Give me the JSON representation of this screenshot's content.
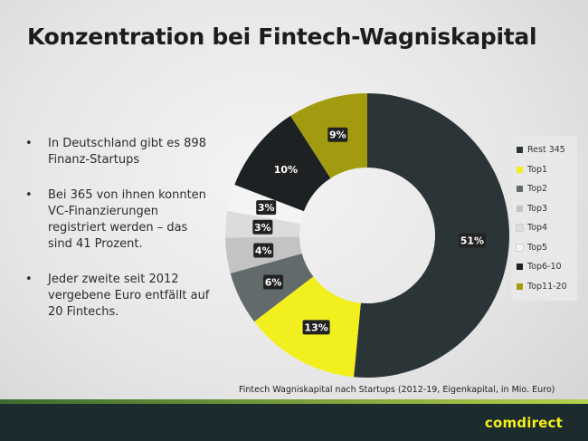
{
  "title": "Konzentration bei Fintech-Wagniskapital",
  "bullets": [
    "In Deutschland gibt es 898 Finanz-Startups",
    "Bei 365 von ihnen konnten VC-Finanzierungen registriert werden – das sind 41 Prozent.",
    "Jeder zweite seit 2012 vergebene Euro entfällt auf 20 Fintechs."
  ],
  "caption": "Fintech Wagniskapital nach Startups (2012-19, Eigenkapital, in Mio. Euro)",
  "brand": "comdirect",
  "chart_data": {
    "type": "pie",
    "subtype": "donut",
    "unit": "%",
    "legend_position": "right",
    "segments": [
      {
        "name": "Rest 345",
        "value": 51,
        "label": "51%",
        "color": "#2b3537"
      },
      {
        "name": "Top1",
        "value": 13,
        "label": "13%",
        "color": "#f2ef1f"
      },
      {
        "name": "Top2",
        "value": 6,
        "label": "6%",
        "color": "#626a6b"
      },
      {
        "name": "Top3",
        "value": 4,
        "label": "4%",
        "color": "#c3c3c3"
      },
      {
        "name": "Top4",
        "value": 3,
        "label": "3%",
        "color": "#dcdcdc"
      },
      {
        "name": "Top5",
        "value": 3,
        "label": "3%",
        "color": "#f4f4f4"
      },
      {
        "name": "Top6-10",
        "value": 10,
        "label": "10%",
        "color": "#1c2124"
      },
      {
        "name": "Top11-20",
        "value": 9,
        "label": "9%",
        "color": "#a39b0f"
      }
    ]
  }
}
